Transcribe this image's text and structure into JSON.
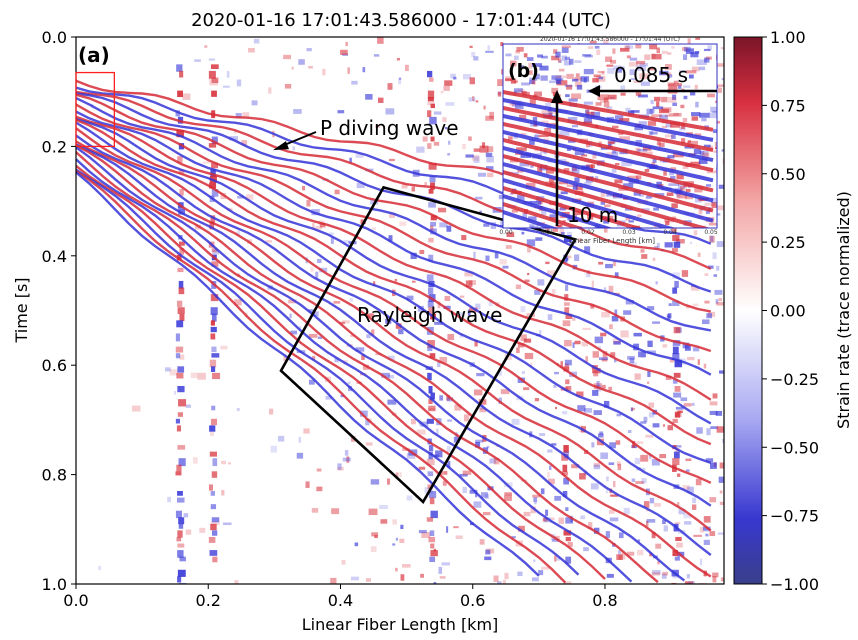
{
  "chart_data": {
    "type": "heatmap",
    "title": "2020-01-16 17:01:43.586000 - 17:01:44 (UTC)",
    "xlabel": "Linear Fiber Length [km]",
    "ylabel": "Time [s]",
    "xlim": [
      0.0,
      0.98
    ],
    "ylim": [
      1.0,
      0.0
    ],
    "x_ticks": [
      "0.0",
      "0.2",
      "0.4",
      "0.6",
      "0.8"
    ],
    "x_tick_values": [
      0.0,
      0.2,
      0.4,
      0.6,
      0.8
    ],
    "y_ticks": [
      "0.0",
      "0.2",
      "0.4",
      "0.6",
      "0.8",
      "1.0"
    ],
    "y_tick_values": [
      0.0,
      0.2,
      0.4,
      0.6,
      0.8,
      1.0
    ],
    "colorbar": {
      "label": "Strain rate (trace normalized)",
      "range": [
        -1.0,
        1.0
      ],
      "ticks": [
        "1.00",
        "0.75",
        "0.50",
        "0.25",
        "0.00",
        "−0.25",
        "−0.50",
        "−0.75",
        "−1.00"
      ],
      "tick_values": [
        1.0,
        0.75,
        0.5,
        0.25,
        0.0,
        -0.25,
        -0.5,
        -0.75,
        -1.0
      ],
      "colors": {
        "high": "#b2182b",
        "mid": "#ffffff",
        "low": "#2c2cc8"
      }
    },
    "panel_label": "(a)",
    "annotations": [
      {
        "text": "P diving wave",
        "arrow_to_km": 0.31,
        "arrow_to_s": 0.205
      },
      {
        "text": "Rayleigh wave",
        "box_corners_km_s": [
          [
            0.465,
            0.275
          ],
          [
            0.755,
            0.37
          ],
          [
            0.525,
            0.85
          ],
          [
            0.31,
            0.61
          ]
        ]
      }
    ],
    "zoom_box": {
      "x_km": [
        0.0,
        0.058
      ],
      "t_s": [
        0.065,
        0.2
      ],
      "color": "#ff0000"
    },
    "inset": {
      "panel_label": "(b)",
      "title": "2020-01-16 17:01:43.586000 - 17:01:44 (UTC)",
      "xlabel": "Linear Fiber Length [km]",
      "x_ticks": [
        "0.00",
        "0.01",
        "0.02",
        "0.03",
        "0.04",
        "0.05"
      ],
      "time_annotation": "0.085 s",
      "distance_annotation": "10 m"
    }
  }
}
